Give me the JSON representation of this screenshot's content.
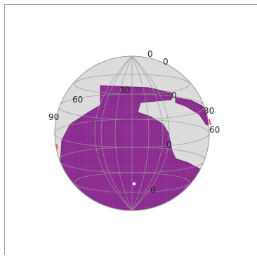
{
  "chart_data": {
    "type": "map",
    "projection": "orthographic",
    "title": "",
    "xlabel": "",
    "ylabel": "",
    "grid": true,
    "colors": {
      "sphere": "#dcdcdc",
      "land": "#8b2a8e",
      "land_edge": "#6e1f70",
      "grid": "#999999",
      "outline": "#9a9a9a",
      "marker": "#ff4d4d"
    },
    "tick_labels": [
      {
        "id": "tick-top-0a",
        "text": "0"
      },
      {
        "id": "tick-top-0b",
        "text": "0"
      },
      {
        "id": "tick-lat-30",
        "text": "30"
      },
      {
        "id": "tick-lon-60",
        "text": "60"
      },
      {
        "id": "tick-lon-90",
        "text": "90"
      },
      {
        "id": "tick-mid-0",
        "text": "0"
      },
      {
        "id": "tick-right-30",
        "text": "30"
      },
      {
        "id": "tick-right-60",
        "text": "60"
      },
      {
        "id": "tick-center-0",
        "text": "0"
      },
      {
        "id": "tick-bottom-0",
        "text": "0"
      }
    ]
  }
}
